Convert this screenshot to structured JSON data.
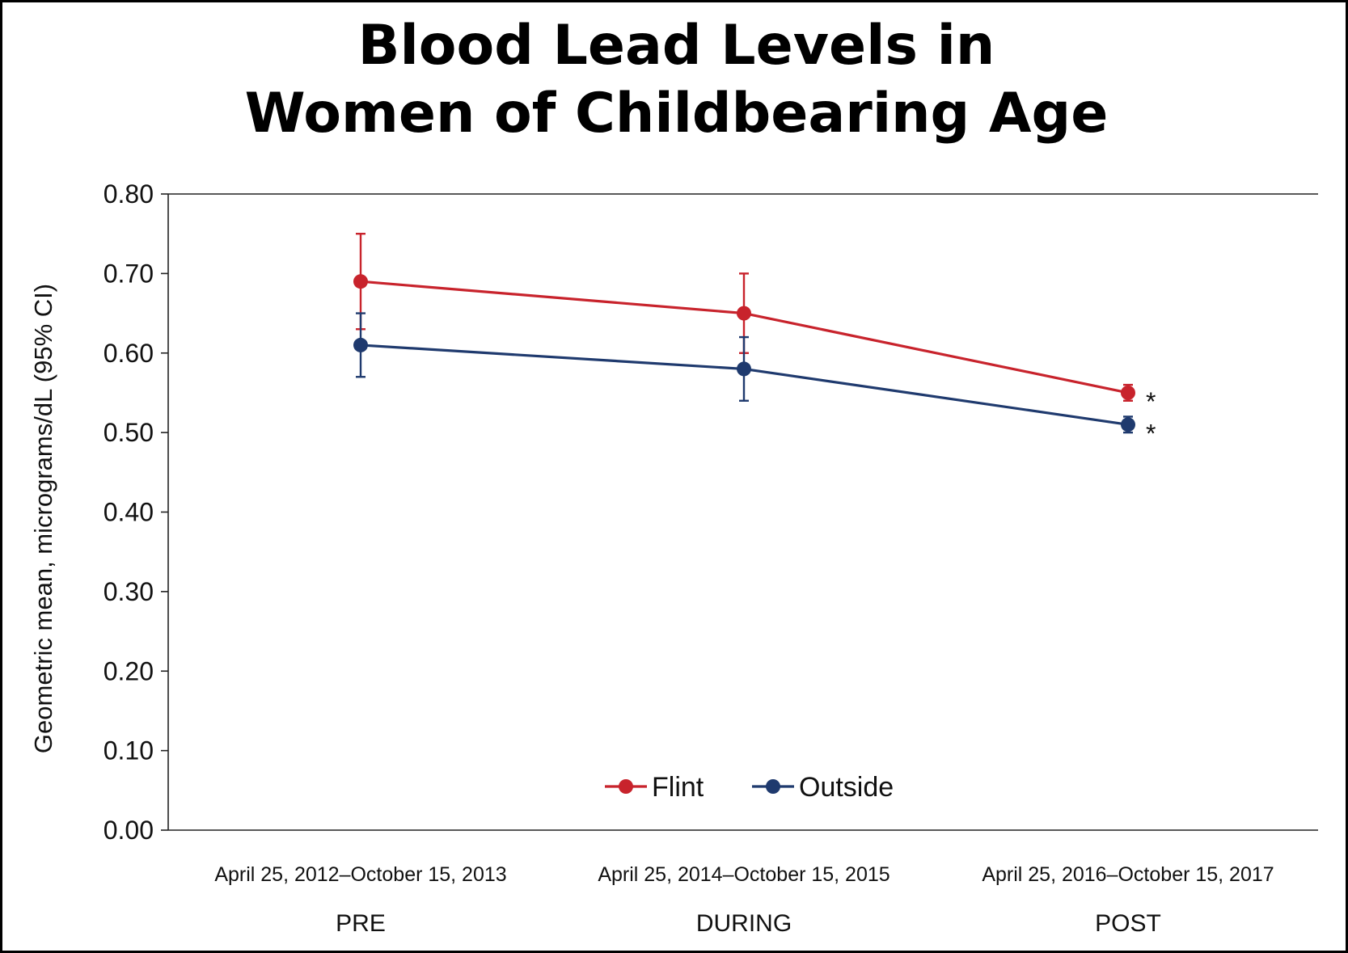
{
  "title_lines": [
    "Blood Lead Levels in",
    "Women of Childbearing Age"
  ],
  "chart_data": {
    "type": "line",
    "title": "Blood Lead Levels in Women of Childbearing Age",
    "ylabel": "Geometric mean, micrograms/dL (95% CI)",
    "ylim": [
      0.0,
      0.8
    ],
    "yticks": [
      "0.00",
      "0.10",
      "0.20",
      "0.30",
      "0.40",
      "0.50",
      "0.60",
      "0.70",
      "0.80"
    ],
    "grid": false,
    "legend_position": "bottom-center",
    "categories": [
      {
        "label": "April 25, 2012–October 15, 2013",
        "period": "PRE"
      },
      {
        "label": "April 25, 2014–October 15, 2015",
        "period": "DURING"
      },
      {
        "label": "April 25, 2016–October 15, 2017",
        "period": "POST"
      }
    ],
    "series": [
      {
        "name": "Flint",
        "color": "#c8232c",
        "values": [
          0.69,
          0.65,
          0.55
        ],
        "ci_low": [
          0.63,
          0.6,
          0.54
        ],
        "ci_high": [
          0.75,
          0.7,
          0.56
        ],
        "significance_markers": [
          "",
          "",
          "*"
        ]
      },
      {
        "name": "Outside",
        "color": "#1f3a6e",
        "values": [
          0.61,
          0.58,
          0.51
        ],
        "ci_low": [
          0.57,
          0.54,
          0.5
        ],
        "ci_high": [
          0.65,
          0.62,
          0.52
        ],
        "significance_markers": [
          "",
          "",
          "*"
        ]
      }
    ]
  }
}
